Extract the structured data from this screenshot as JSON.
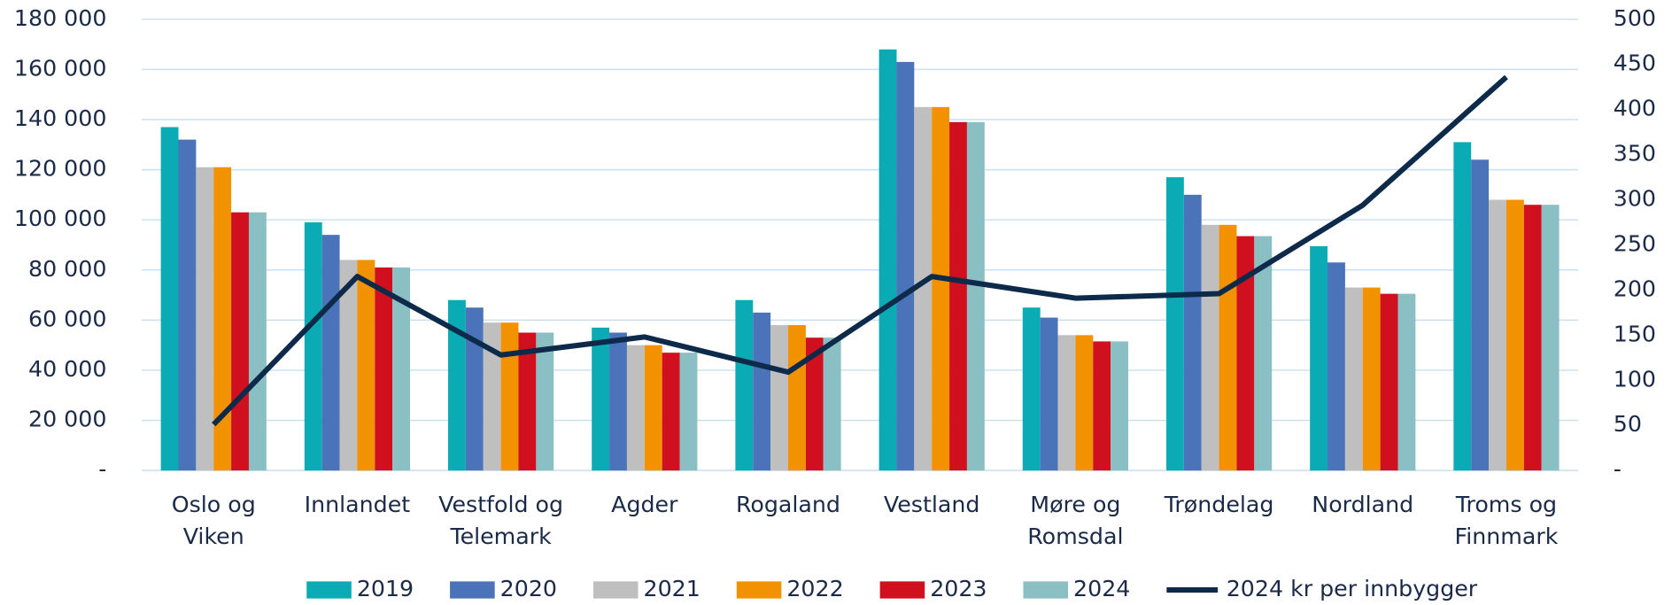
{
  "chart_data": {
    "type": "bar",
    "categories": [
      "Oslo og Viken",
      "Innlandet",
      "Vestfold og Telemark",
      "Agder",
      "Rogaland",
      "Vestland",
      "Møre og Romsdal",
      "Trøndelag",
      "Nordland",
      "Troms og Finnmark"
    ],
    "series": [
      {
        "name": "2019",
        "color": "#0aabb4",
        "values": [
          137000,
          99000,
          68000,
          57000,
          68000,
          168000,
          65000,
          117000,
          89500,
          131000
        ]
      },
      {
        "name": "2020",
        "color": "#4a73b9",
        "values": [
          132000,
          94000,
          65000,
          55000,
          63000,
          163000,
          61000,
          110000,
          83000,
          124000
        ]
      },
      {
        "name": "2021",
        "color": "#bfbfbf",
        "values": [
          121000,
          84000,
          59000,
          50000,
          58000,
          145000,
          54000,
          98000,
          73000,
          108000
        ]
      },
      {
        "name": "2022",
        "color": "#f39200",
        "values": [
          121000,
          84000,
          59000,
          50000,
          58000,
          145000,
          54000,
          98000,
          73000,
          108000
        ]
      },
      {
        "name": "2023",
        "color": "#d0101e",
        "values": [
          103000,
          81000,
          55000,
          47000,
          53000,
          139000,
          51500,
          93500,
          70500,
          106000
        ]
      },
      {
        "name": "2024",
        "color": "#8abfc4",
        "values": [
          103000,
          81000,
          55000,
          47000,
          53000,
          139000,
          51500,
          93500,
          70500,
          106000
        ]
      },
      {
        "name": "2024 kr per innbygger",
        "color": "#0d2a4a",
        "type": "line",
        "axis": "y2",
        "values": [
          51,
          215,
          128,
          148,
          109,
          215,
          191,
          196,
          294,
          436
        ]
      }
    ],
    "ylim": [
      0,
      180000
    ],
    "yticks": [
      {
        "value": 0,
        "label": "-"
      },
      {
        "value": 20000,
        "label": "20 000"
      },
      {
        "value": 40000,
        "label": "40 000"
      },
      {
        "value": 60000,
        "label": "60 000"
      },
      {
        "value": 80000,
        "label": "80 000"
      },
      {
        "value": 100000,
        "label": "100 000"
      },
      {
        "value": 120000,
        "label": "120 000"
      },
      {
        "value": 140000,
        "label": "140 000"
      },
      {
        "value": 160000,
        "label": "160 000"
      },
      {
        "value": 180000,
        "label": "180 000"
      }
    ],
    "y2lim": [
      0,
      500
    ],
    "y2ticks": [
      {
        "value": 0,
        "label": "-"
      },
      50,
      100,
      150,
      200,
      250,
      300,
      350,
      400,
      450,
      500
    ],
    "grid": true,
    "legend": "bottom"
  }
}
